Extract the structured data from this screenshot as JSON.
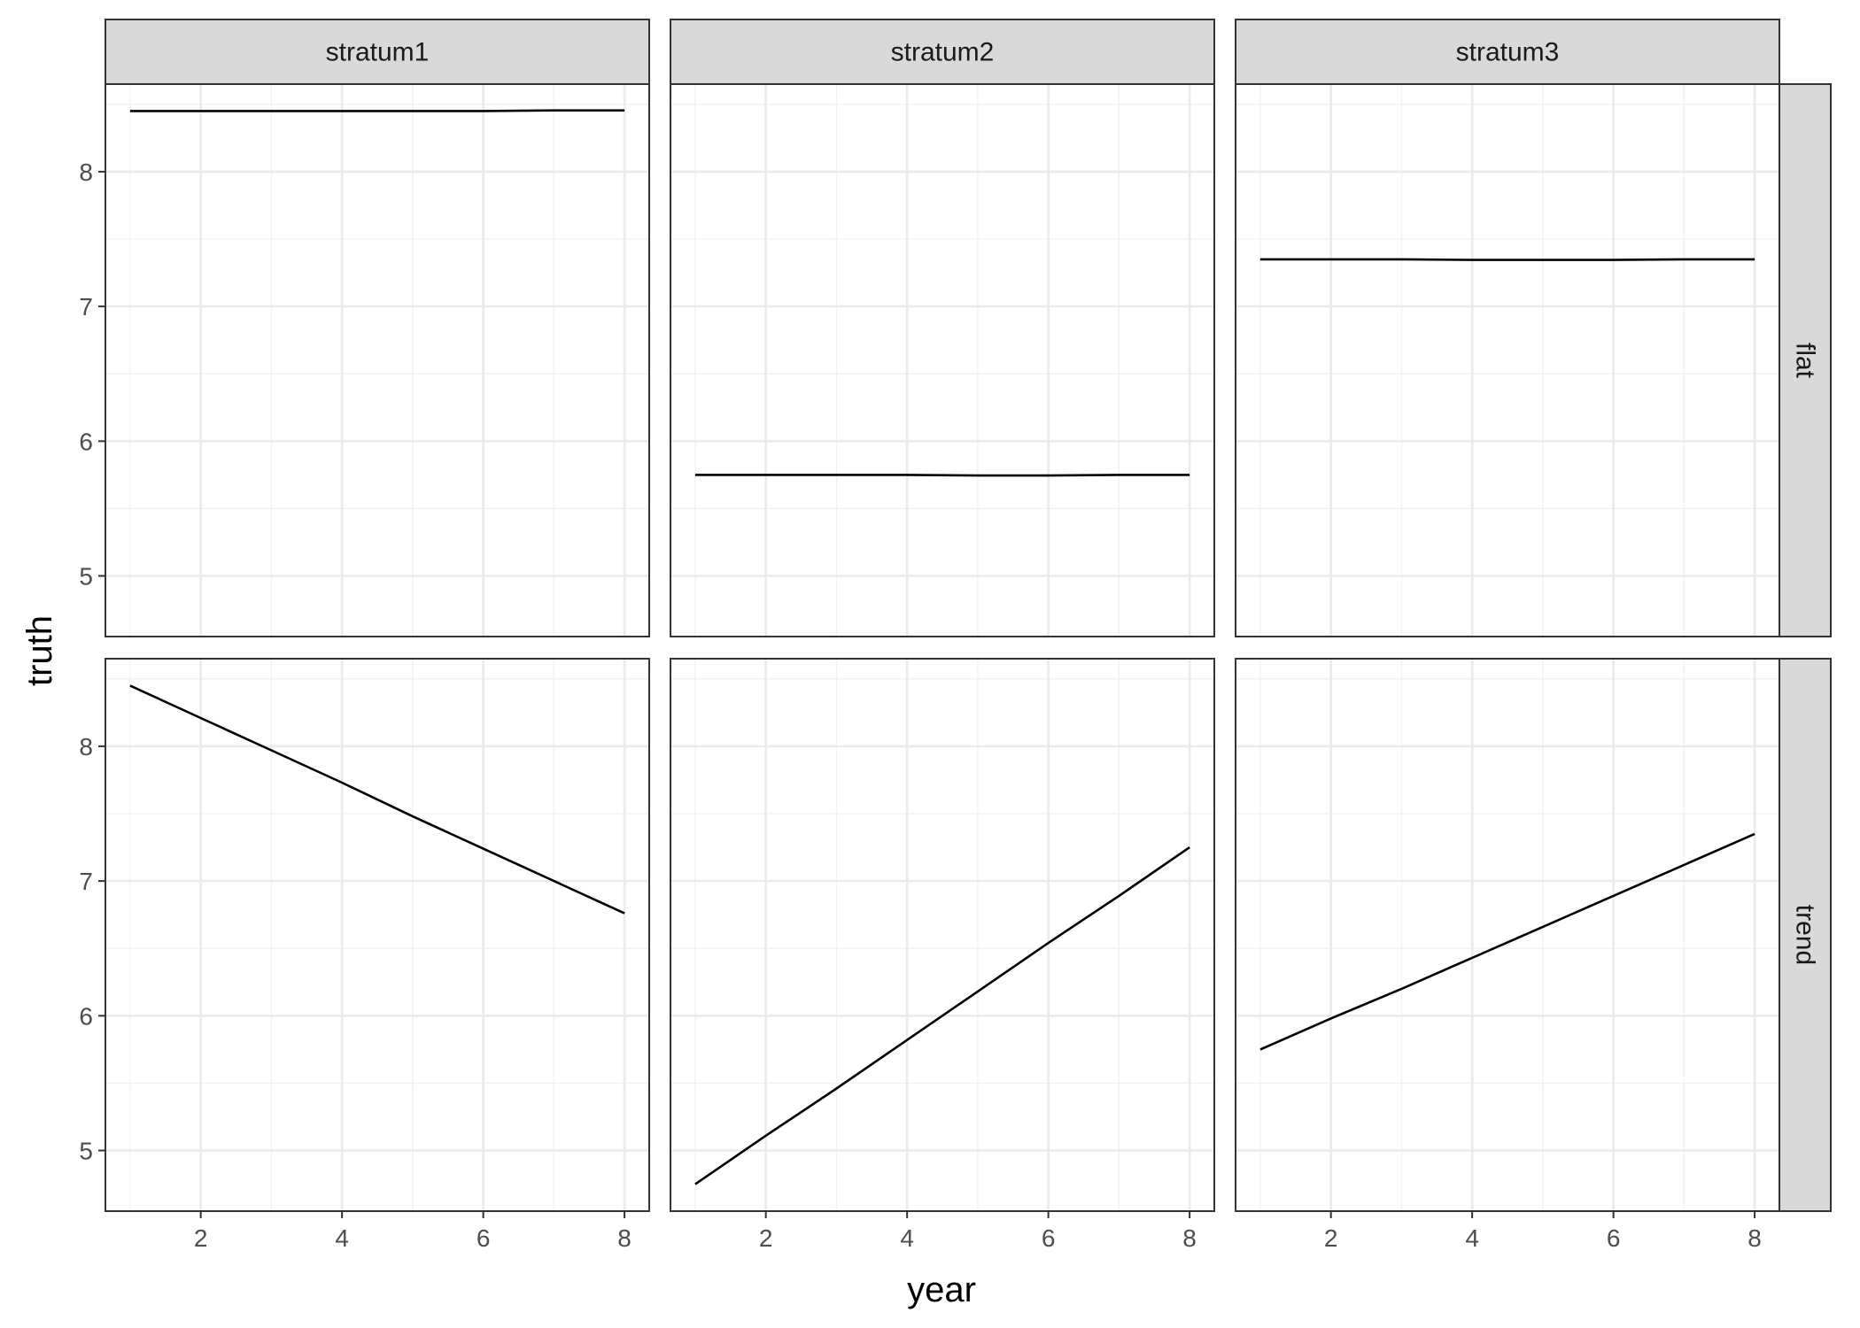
{
  "chart_data": {
    "type": "line",
    "xlabel": "year",
    "ylabel": "truth",
    "xlim": [
      0.65,
      8.35
    ],
    "ylim": [
      4.55,
      8.65
    ],
    "x_ticks": [
      2,
      4,
      6,
      8
    ],
    "y_ticks": [
      5,
      6,
      7,
      8
    ],
    "grid": true,
    "columns": [
      "stratum1",
      "stratum2",
      "stratum3"
    ],
    "rows": [
      "flat",
      "trend"
    ],
    "panels": [
      {
        "row": "flat",
        "column": "stratum1",
        "x": [
          1,
          2,
          3,
          4,
          5,
          6,
          7,
          8
        ],
        "y": [
          8.45,
          8.45,
          8.45,
          8.45,
          8.45,
          8.45,
          8.455,
          8.455
        ]
      },
      {
        "row": "flat",
        "column": "stratum2",
        "x": [
          1,
          2,
          3,
          4,
          5,
          6,
          7,
          8
        ],
        "y": [
          5.75,
          5.75,
          5.75,
          5.75,
          5.745,
          5.745,
          5.75,
          5.75
        ]
      },
      {
        "row": "flat",
        "column": "stratum3",
        "x": [
          1,
          2,
          3,
          4,
          5,
          6,
          7,
          8
        ],
        "y": [
          7.35,
          7.35,
          7.35,
          7.345,
          7.345,
          7.345,
          7.35,
          7.35
        ]
      },
      {
        "row": "trend",
        "column": "stratum1",
        "x": [
          1,
          2,
          3,
          4,
          5,
          6,
          7,
          8
        ],
        "y": [
          8.45,
          8.21,
          7.97,
          7.73,
          7.48,
          7.24,
          7.0,
          6.76
        ]
      },
      {
        "row": "trend",
        "column": "stratum2",
        "x": [
          1,
          2,
          3,
          4,
          5,
          6,
          7,
          8
        ],
        "y": [
          4.75,
          5.11,
          5.46,
          5.82,
          6.18,
          6.54,
          6.89,
          7.25
        ]
      },
      {
        "row": "trend",
        "column": "stratum3",
        "x": [
          1,
          2,
          3,
          4,
          5,
          6,
          7,
          8
        ],
        "y": [
          5.75,
          5.98,
          6.2,
          6.43,
          6.66,
          6.89,
          7.12,
          7.35
        ]
      }
    ]
  }
}
